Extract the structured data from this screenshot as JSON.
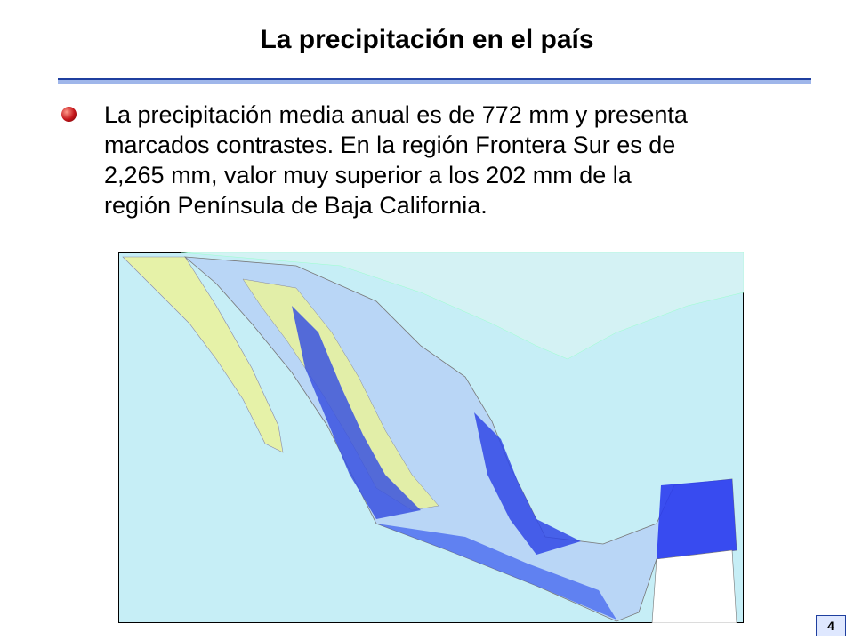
{
  "header": {
    "title": "La precipitación en el país"
  },
  "bullet": {
    "lines": [
      "La precipitación media anual es de 772 mm y presenta",
      "marcados contrastes. En la región Frontera Sur es de",
      "2,265 mm, valor muy superior a los 202 mm de la",
      "región Península de Baja California."
    ]
  },
  "footer": {
    "page_number": "4"
  }
}
